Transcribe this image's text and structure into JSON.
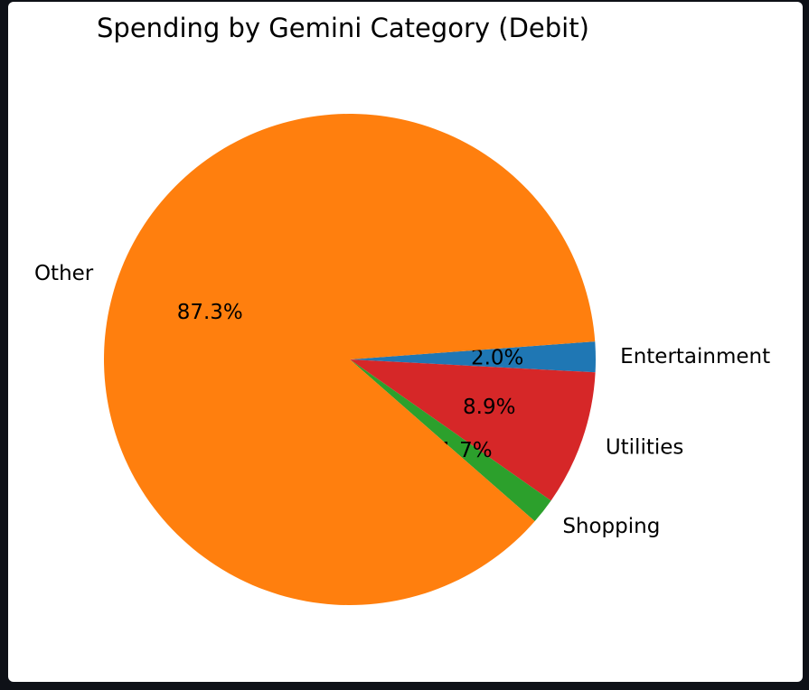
{
  "chart_data": {
    "type": "pie",
    "title": "Spending by Gemini Category (Debit)",
    "slices": [
      {
        "label": "Entertainment",
        "value": 2.0,
        "pct_label": "2.0%",
        "color": "#1f77b4"
      },
      {
        "label": "Utilities",
        "value": 8.9,
        "pct_label": "8.9%",
        "color": "#d62728"
      },
      {
        "label": "Shopping",
        "value": 1.7,
        "pct_label": "1.7%",
        "color": "#2ca02c"
      },
      {
        "label": "Other",
        "value": 87.3,
        "pct_label": "87.3%",
        "color": "#ff7f0e"
      }
    ]
  }
}
